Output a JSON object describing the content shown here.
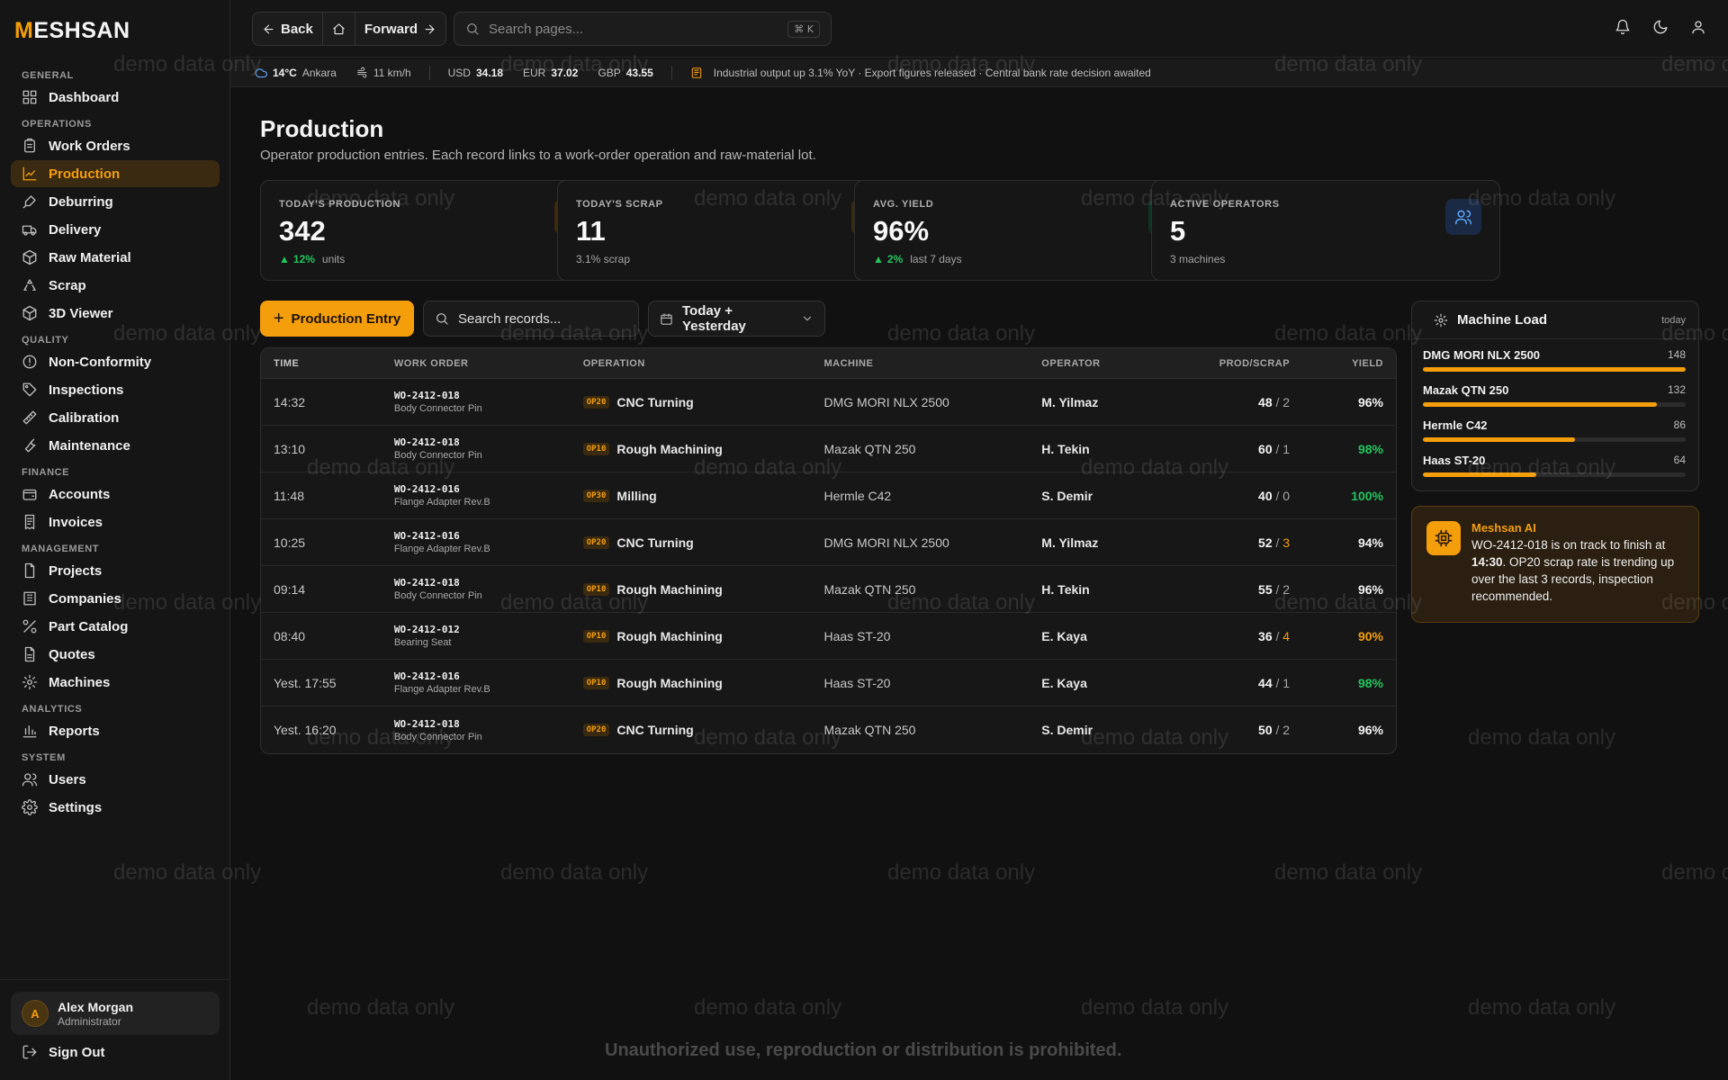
{
  "brand": {
    "logo_mark": "M",
    "logo_rest": "ESHSAN",
    "accent": "#f59e0b"
  },
  "topbar": {
    "back_label": "Back",
    "forward_label": "Forward",
    "search_placeholder": "Search pages...",
    "search_shortcut": "⌘ K",
    "icons": [
      "bell-icon",
      "moon-icon",
      "user-icon"
    ]
  },
  "ticker": {
    "temp": "14°C",
    "city": "Ankara",
    "wind": "11 km/h",
    "usd_label": "USD",
    "usd": "34.18",
    "eur_label": "EUR",
    "eur": "37.02",
    "gbp_label": "GBP",
    "gbp": "43.55",
    "news": "Industrial output up 3.1% YoY · Export figures released · Central bank rate decision awaited"
  },
  "sidebar": {
    "sections": [
      {
        "title": "GENERAL",
        "items": [
          {
            "label": "Dashboard",
            "icon": "dashboard-icon"
          }
        ]
      },
      {
        "title": "OPERATIONS",
        "items": [
          {
            "label": "Work Orders",
            "icon": "clipboard-icon"
          },
          {
            "label": "Production",
            "icon": "chart-icon",
            "active": true
          },
          {
            "label": "Deburring",
            "icon": "brush-icon"
          },
          {
            "label": "Delivery",
            "icon": "truck-icon"
          },
          {
            "label": "Raw Material",
            "icon": "box-icon"
          },
          {
            "label": "Scrap",
            "icon": "recycle-icon"
          },
          {
            "label": "3D Viewer",
            "icon": "cube-icon"
          }
        ]
      },
      {
        "title": "QUALITY",
        "items": [
          {
            "label": "Non-Conformity",
            "icon": "alert-circle-icon"
          },
          {
            "label": "Inspections",
            "icon": "tag-icon"
          },
          {
            "label": "Calibration",
            "icon": "ruler-icon"
          },
          {
            "label": "Maintenance",
            "icon": "wrench-icon"
          }
        ]
      },
      {
        "title": "FINANCE",
        "items": [
          {
            "label": "Accounts",
            "icon": "wallet-icon"
          },
          {
            "label": "Invoices",
            "icon": "receipt-icon"
          }
        ]
      },
      {
        "title": "MANAGEMENT",
        "items": [
          {
            "label": "Projects",
            "icon": "file-icon"
          },
          {
            "label": "Companies",
            "icon": "building-icon"
          },
          {
            "label": "Part Catalog",
            "icon": "parts-icon"
          },
          {
            "label": "Quotes",
            "icon": "document-icon"
          },
          {
            "label": "Machines",
            "icon": "gear-icon"
          }
        ]
      },
      {
        "title": "ANALYTICS",
        "items": [
          {
            "label": "Reports",
            "icon": "bar-chart-icon"
          }
        ]
      },
      {
        "title": "SYSTEM",
        "items": [
          {
            "label": "Users",
            "icon": "users-icon"
          },
          {
            "label": "Settings",
            "icon": "settings-icon"
          }
        ]
      }
    ],
    "user": {
      "initial": "A",
      "name": "Alex Morgan",
      "role": "Administrator"
    },
    "signout_label": "Sign Out"
  },
  "page": {
    "title": "Production",
    "subtitle": "Operator production entries. Each record links to a work-order operation and raw-material lot."
  },
  "stats": [
    {
      "label": "TODAY'S PRODUCTION",
      "value": "342",
      "delta": "12%",
      "foot": "units",
      "icon": "factory-icon",
      "tone": "amber"
    },
    {
      "label": "TODAY'S SCRAP",
      "value": "11",
      "delta": "",
      "foot": "3.1% scrap",
      "icon": "recycle-icon",
      "tone": "amber"
    },
    {
      "label": "AVG. YIELD",
      "value": "96%",
      "delta": "2%",
      "foot": "last 7 days",
      "icon": "gauge-icon",
      "tone": "green"
    },
    {
      "label": "ACTIVE OPERATORS",
      "value": "5",
      "delta": "",
      "foot": "3 machines",
      "icon": "users-icon",
      "tone": "blue"
    }
  ],
  "toolbar": {
    "add_label": "Production Entry",
    "search_placeholder": "Search records...",
    "date_filter": "Today + Yesterday"
  },
  "table": {
    "headers": {
      "time": "TIME",
      "work_order": "WORK ORDER",
      "operation": "OPERATION",
      "machine": "MACHINE",
      "operator": "OPERATOR",
      "prod_scrap": "PROD/SCRAP",
      "yield": "YIELD"
    },
    "rows": [
      {
        "time": "14:32",
        "wo": "WO-2412-018",
        "part": "Body Connector Pin",
        "op_code": "OP20",
        "op": "CNC Turning",
        "machine": "DMG MORI NLX 2500",
        "operator": "M. Yilmaz",
        "prod": "48",
        "scrap": "2",
        "scrap_warn": false,
        "yield": "96%",
        "yield_tone": "white"
      },
      {
        "time": "13:10",
        "wo": "WO-2412-018",
        "part": "Body Connector Pin",
        "op_code": "OP10",
        "op": "Rough Machining",
        "machine": "Mazak QTN 250",
        "operator": "H. Tekin",
        "prod": "60",
        "scrap": "1",
        "scrap_warn": false,
        "yield": "98%",
        "yield_tone": "green"
      },
      {
        "time": "11:48",
        "wo": "WO-2412-016",
        "part": "Flange Adapter Rev.B",
        "op_code": "OP30",
        "op": "Milling",
        "machine": "Hermle C42",
        "operator": "S. Demir",
        "prod": "40",
        "scrap": "0",
        "scrap_warn": false,
        "yield": "100%",
        "yield_tone": "green"
      },
      {
        "time": "10:25",
        "wo": "WO-2412-016",
        "part": "Flange Adapter Rev.B",
        "op_code": "OP20",
        "op": "CNC Turning",
        "machine": "DMG MORI NLX 2500",
        "operator": "M. Yilmaz",
        "prod": "52",
        "scrap": "3",
        "scrap_warn": true,
        "yield": "94%",
        "yield_tone": "white"
      },
      {
        "time": "09:14",
        "wo": "WO-2412-018",
        "part": "Body Connector Pin",
        "op_code": "OP10",
        "op": "Rough Machining",
        "machine": "Mazak QTN 250",
        "operator": "H. Tekin",
        "prod": "55",
        "scrap": "2",
        "scrap_warn": false,
        "yield": "96%",
        "yield_tone": "white"
      },
      {
        "time": "08:40",
        "wo": "WO-2412-012",
        "part": "Bearing Seat",
        "op_code": "OP10",
        "op": "Rough Machining",
        "machine": "Haas ST-20",
        "operator": "E. Kaya",
        "prod": "36",
        "scrap": "4",
        "scrap_warn": true,
        "yield": "90%",
        "yield_tone": "amber"
      },
      {
        "time": "Yest. 17:55",
        "wo": "WO-2412-016",
        "part": "Flange Adapter Rev.B",
        "op_code": "OP10",
        "op": "Rough Machining",
        "machine": "Haas ST-20",
        "operator": "E. Kaya",
        "prod": "44",
        "scrap": "1",
        "scrap_warn": false,
        "yield": "98%",
        "yield_tone": "green"
      },
      {
        "time": "Yest. 16:20",
        "wo": "WO-2412-018",
        "part": "Body Connector Pin",
        "op_code": "OP20",
        "op": "CNC Turning",
        "machine": "Mazak QTN 250",
        "operator": "S. Demir",
        "prod": "50",
        "scrap": "2",
        "scrap_warn": false,
        "yield": "96%",
        "yield_tone": "white"
      }
    ]
  },
  "machine_load": {
    "title": "Machine Load",
    "period": "today",
    "max": 148,
    "items": [
      {
        "name": "DMG MORI NLX 2500",
        "value": 148,
        "fill": 1.0
      },
      {
        "name": "Mazak QTN 250",
        "value": 132,
        "fill": 0.89
      },
      {
        "name": "Hermle C42",
        "value": 86,
        "fill": 0.58
      },
      {
        "name": "Haas ST-20",
        "value": 64,
        "fill": 0.43
      }
    ]
  },
  "ai": {
    "title": "Meshsan AI",
    "wo": "WO-2412-018",
    "text_1": " is on track to finish at ",
    "time": "14:30",
    "text_2": ". OP20 scrap rate is trending up over the last 3 records, inspection recommended."
  },
  "watermark": "demo data only",
  "footer_note": "Unauthorized use, reproduction or distribution is prohibited."
}
